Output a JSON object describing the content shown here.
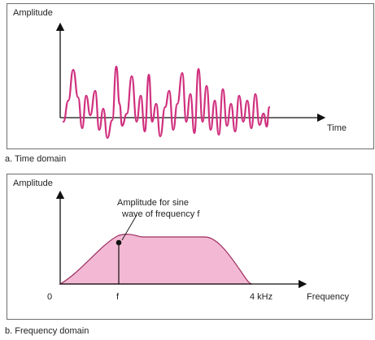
{
  "time_domain": {
    "y_label": "Amplitude",
    "x_label": "Time",
    "caption": "a. Time domain",
    "wave_color": "#d0307e"
  },
  "frequency_domain": {
    "y_label": "Amplitude",
    "x_label": "Frequency",
    "annotation_line1": "Amplitude for sine",
    "annotation_line2": "wave of frequency f",
    "tick_origin": "0",
    "tick_f": "f",
    "tick_4khz": "4 kHz",
    "caption": "b. Frequency domain",
    "fill_color": "#f3b9d4",
    "stroke_color": "#9c2d5f"
  }
}
